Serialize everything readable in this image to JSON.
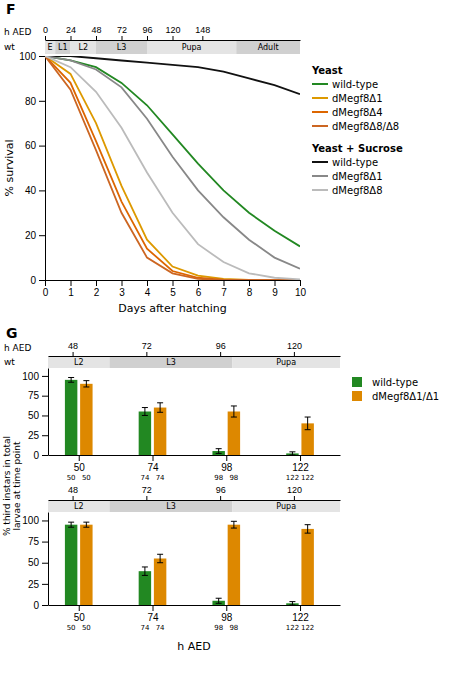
{
  "chart_data": [
    {
      "type": "line",
      "title": "F",
      "x": [
        0,
        1,
        2,
        3,
        4,
        5,
        6,
        7,
        8,
        9,
        10
      ],
      "xlim": [
        0,
        10
      ],
      "xticks": [
        0,
        1,
        2,
        3,
        4,
        5,
        6,
        7,
        8,
        9,
        10
      ],
      "ylim": [
        0,
        100
      ],
      "yticks": [
        0,
        20,
        40,
        60,
        80,
        100
      ],
      "x_label": "Days after hatching",
      "y_label": "% survival",
      "x2lim": [
        0,
        10
      ],
      "x2ticks": [
        0,
        {
          "value": 1,
          "label": "24"
        },
        {
          "value": 2,
          "label": "48"
        },
        {
          "value": 3,
          "label": "72"
        },
        {
          "value": 4,
          "label": "96"
        },
        {
          "value": 5,
          "label": "120"
        },
        {
          "value": 6.17,
          "label": "148"
        }
      ],
      "x2_label": "h AED",
      "stage_label": "wt",
      "stages": [
        {
          "label": "E",
          "start": 0,
          "end": 0.4
        },
        {
          "label": "L1",
          "start": 0.4,
          "end": 1.0
        },
        {
          "label": "L2",
          "start": 1.0,
          "end": 2.0
        },
        {
          "label": "L3",
          "start": 2.0,
          "end": 4.0
        },
        {
          "label": "Pupa",
          "start": 4.0,
          "end": 7.5
        },
        {
          "label": "Adult",
          "start": 7.5,
          "end": 10
        }
      ],
      "legend": "right",
      "series": [
        {
          "name": "wild-type",
          "group": "Yeast",
          "color": "#228822",
          "values": [
            100,
            98,
            95,
            88,
            78,
            65,
            52,
            40,
            30,
            22,
            15
          ]
        },
        {
          "name": "dMegf8Δ1",
          "group": "Yeast",
          "color": "#dd9900",
          "values": [
            100,
            92,
            70,
            42,
            18,
            6,
            2,
            0.5,
            0,
            0,
            0
          ]
        },
        {
          "name": "dMegf8Δ4",
          "group": "Yeast",
          "color": "#dd6600",
          "values": [
            100,
            88,
            62,
            35,
            14,
            4,
            1,
            0,
            0,
            0,
            0
          ]
        },
        {
          "name": "dMegf8Δ8/Δ8",
          "group": "Yeast",
          "color": "#cc6622",
          "values": [
            100,
            85,
            58,
            30,
            10,
            3,
            0.5,
            0,
            0,
            0,
            0
          ]
        },
        {
          "name": "wild-type",
          "group": "Yeast + Sucrose",
          "color": "#111111",
          "values": [
            100,
            100,
            99,
            98,
            97,
            96,
            95,
            93,
            90,
            87,
            83
          ]
        },
        {
          "name": "dMegf8Δ1",
          "group": "Yeast + Sucrose",
          "color": "#888888",
          "values": [
            100,
            98,
            94,
            86,
            72,
            55,
            40,
            28,
            18,
            10,
            5
          ]
        },
        {
          "name": "dMegf8Δ8",
          "group": "Yeast + Sucrose",
          "color": "#bbbbbb",
          "values": [
            100,
            95,
            84,
            68,
            48,
            30,
            16,
            8,
            3,
            1,
            0.3
          ]
        }
      ]
    },
    {
      "type": "bar",
      "title": "G",
      "x": [
        50,
        74,
        98,
        122
      ],
      "xlim": [
        40,
        135
      ],
      "xticks": [
        50,
        74,
        98,
        122
      ],
      "ylim": [
        0,
        110
      ],
      "yticks": [
        0,
        25,
        50,
        75,
        100
      ],
      "y_label": "% third instars in total\nlarvae at time point",
      "x2lim": [
        40,
        135
      ],
      "x2ticks": [
        48,
        72,
        96,
        120
      ],
      "x2_label": "h AED",
      "stage_label": "wt",
      "stages": [
        {
          "label": "L2",
          "start": 40,
          "end": 60
        },
        {
          "label": "L3",
          "start": 60,
          "end": 100
        },
        {
          "label": "Pupa",
          "start": 100,
          "end": 135
        }
      ],
      "legend": "right",
      "series": [
        {
          "name": "wild-type",
          "color": "#228822",
          "values": [
            95,
            55,
            5,
            2
          ],
          "errors": [
            3,
            5,
            3,
            2
          ],
          "n": [
            50,
            74,
            98,
            122
          ]
        },
        {
          "name": "dMegf8Δ1/Δ1",
          "color": "#dd8800",
          "values": [
            90,
            60,
            55,
            40
          ],
          "errors": [
            4,
            6,
            7,
            8
          ],
          "n": [
            50,
            74,
            98,
            122
          ]
        }
      ]
    },
    {
      "type": "bar",
      "x": [
        50,
        74,
        98,
        122
      ],
      "xlim": [
        40,
        135
      ],
      "xticks": [
        50,
        74,
        98,
        122
      ],
      "ylim": [
        0,
        110
      ],
      "yticks": [
        0,
        25,
        50,
        75,
        100
      ],
      "x_label": "h AED",
      "x2lim": [
        40,
        135
      ],
      "x2ticks": [
        48,
        72,
        96,
        120
      ],
      "stages": [
        {
          "label": "L2",
          "start": 40,
          "end": 60
        },
        {
          "label": "L3",
          "start": 60,
          "end": 100
        },
        {
          "label": "Pupa",
          "start": 100,
          "end": 135
        }
      ],
      "series": [
        {
          "color": "#228822",
          "values": [
            95,
            40,
            5,
            2
          ],
          "errors": [
            3,
            5,
            3,
            2
          ],
          "n": [
            50,
            74,
            98,
            122
          ]
        },
        {
          "color": "#dd8800",
          "values": [
            95,
            55,
            95,
            90
          ],
          "errors": [
            3,
            5,
            4,
            5
          ],
          "n": [
            50,
            74,
            98,
            122
          ]
        }
      ]
    }
  ]
}
